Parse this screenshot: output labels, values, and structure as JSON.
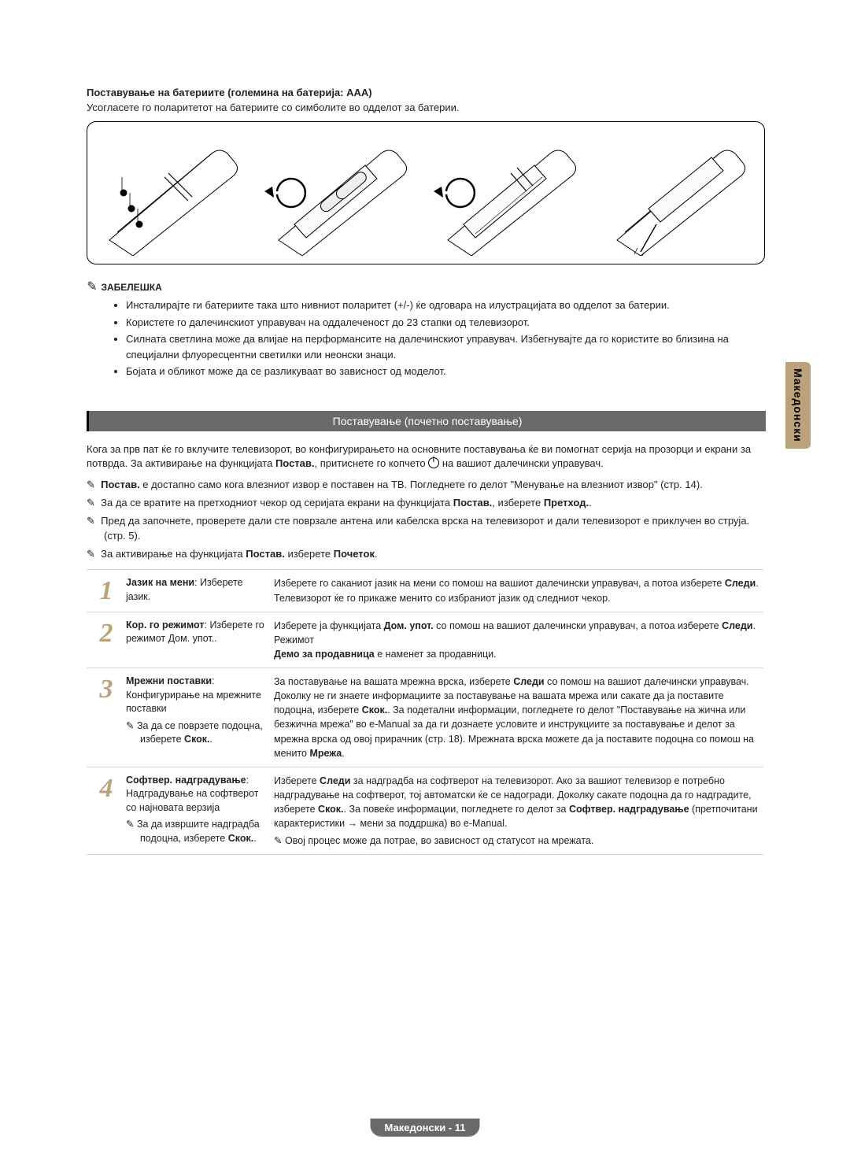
{
  "sideTab": "Македонски",
  "batteryHeading": "Поставување на батериите (големина на батерија: AAA)",
  "batteryIntro": "Усогласете го поларитетот на батериите со симболите во одделот за батерии.",
  "noteLabel": "ЗАБЕЛЕШКА",
  "noteBullets": [
    "Инсталирајте ги батериите така што нивниот поларитет (+/-) ќе одговара на илустрацијата во одделот за батерии.",
    "Користете го далечинскиот управувач на оддалеченост до 23 стапки од телевизорот.",
    "Силната светлина може да влијае на перформансите на далечинскиот управувач. Избегнувајте да го користите во близина на специјални флуоресцентни светилки или неонски знаци.",
    "Бојата и обликот може да се разликуваат во зависност од моделот."
  ],
  "sectionTitle": "Поставување (почетно поставување)",
  "introPart1": "Кога за прв пат ќе го вклучите телевизорот, во конфигурирањето на основните поставувања ќе ви помогнат серија на прозорци и екрани за потврда. За активирање на функцијата ",
  "introBold1": "Постав.",
  "introPart2": ", притиснете го копчето ",
  "introPart3": " на вашиот далечински управувач.",
  "tips": [
    {
      "pre": "",
      "bold": "Постав.",
      "post": " е достапно само кога влезниот извор е поставен на ТВ. Погледнете го делот \"Менување на влезниот извор\" (стр. 14)."
    },
    {
      "pre": "За да се вратите на претходниот чекор од серијата екрани на функцијата ",
      "bold": "Постав.",
      "post": ", изберете ",
      "bold2": "Претход.",
      "post2": "."
    },
    {
      "pre": "Пред да започнете, проверете дали сте поврзале антена или кабелска врска на телевизорот и дали телевизорот е приклучен во струја. (стр. 5).",
      "bold": "",
      "post": ""
    },
    {
      "pre": "За активирање на функцијата ",
      "bold": "Постав.",
      "post": " изберете ",
      "bold2": "Почеток",
      "post2": "."
    }
  ],
  "steps": [
    {
      "num": "1",
      "leftTitle": "Јазик на мени",
      "leftBody": ": Изберете јазик.",
      "right": "Изберете го саканиот јазик на мени со помош на вашиот далечински управувач, а потоа изберете <b>Следи</b>. Телевизорот ќе го прикаже менито со избраниот јазик од следниот чекор."
    },
    {
      "num": "2",
      "leftTitle": "Кор. го режимот",
      "leftBody": ": Изберете го режимот Дом. упот..",
      "right": "Изберете ја функцијата <b>Дом. упот.</b> со помош на вашиот далечински управувач, а потоа изберете <b>Следи</b>. Режимот<br><b>Демо за продавница</b> е наменет за продавници."
    },
    {
      "num": "3",
      "leftTitle": "Мрежни поставки",
      "leftBody": ": Конфигурирање на мрежните поставки",
      "leftTip": "За да се поврзете подоцна, изберете <b>Скок.</b>.",
      "right": "За поставување на вашата мрежна врска, изберете <b>Следи</b> со помош на вашиот далечински управувач. Доколку не ги знаете информациите за поставување на вашата мрежа или сакате да ја поставите подоцна, изберете <b>Скок.</b>. За подетални информации, погледнете го делот \"Поставување на жична или безжична мрежа\" во e-Manual за да ги дознаете условите и инструкциите за поставување и делот за мрежна врска од овој прирачник (стр. 18). Мрежната врска можете да ја поставите подоцна со помош на менито <b>Мрежа</b>."
    },
    {
      "num": "4",
      "leftTitle": "Софтвер. надградување",
      "leftBody": ": Надградување на софтверот со најновата верзија",
      "leftTip": "За да извршите надградба подоцна, изберете <b>Скок.</b>.",
      "right": "Изберете <b>Следи</b> за надградба на софтверот на телевизорот. Ако за вашиот телевизор е потребно надградување на софтверот, тој автоматски ќе се надогради. Доколку сакате подоцна да го надградите, изберете <b>Скок.</b>. За повеќе информации, погледнете го делот за <b>Софтвер. надградување</b> (претпочитани карактеристики → мени за поддршка) во e-Manual.",
      "rightTip": "Овој процес може да потрае, во зависност од статусот на мрежата."
    }
  ],
  "footer": "Македонски - 11",
  "pencilGlyph": "✎"
}
